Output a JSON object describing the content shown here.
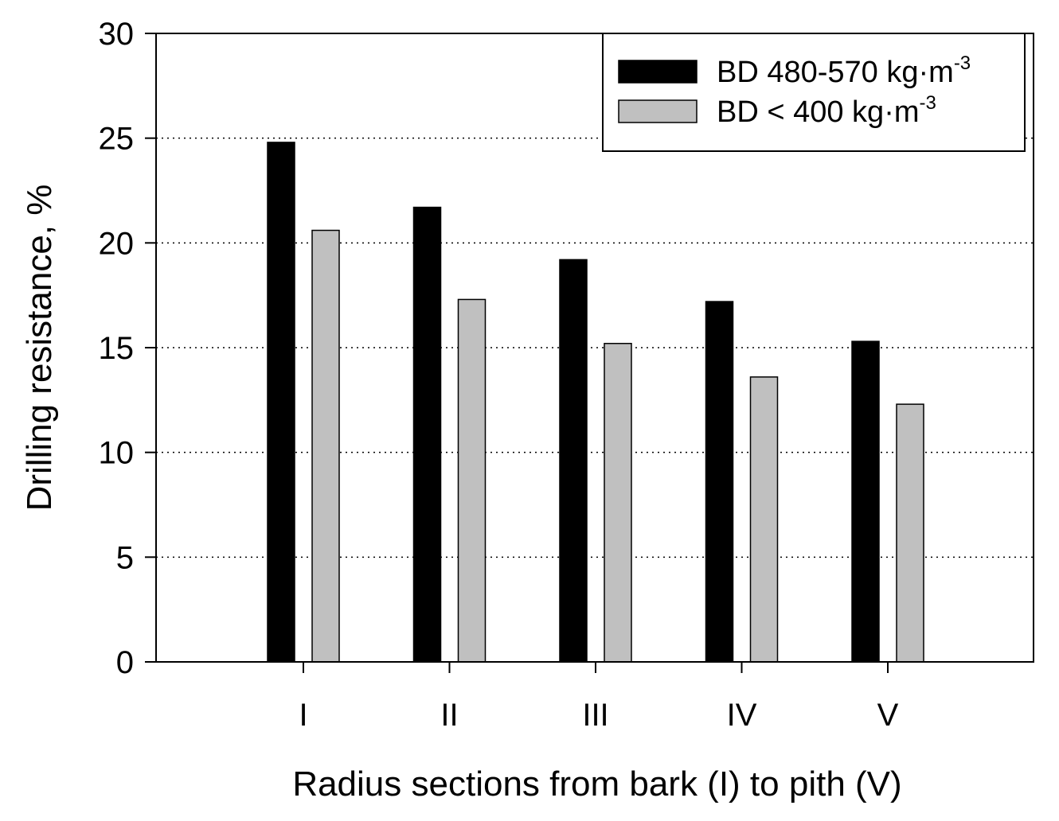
{
  "chart_data": {
    "type": "bar",
    "categories": [
      "I",
      "II",
      "III",
      "IV",
      "V"
    ],
    "series": [
      {
        "name": "BD 480-570 kg·m",
        "name_sup": "-3",
        "values": [
          24.8,
          21.7,
          19.2,
          17.2,
          15.3
        ],
        "color": "#000000"
      },
      {
        "name": "BD < 400 kg·m",
        "name_sup": "-3",
        "values": [
          20.6,
          17.3,
          15.2,
          13.6,
          12.3
        ],
        "color": "#c0c0c0"
      }
    ],
    "xlabel": "Radius sections from bark (I) to pith (V)",
    "ylabel": "Drilling resistance, %",
    "ylim": [
      0,
      30
    ],
    "yticks": [
      0,
      5,
      10,
      15,
      20,
      25,
      30
    ],
    "grid": "horizontal-dotted",
    "legend_position": "top-right"
  }
}
